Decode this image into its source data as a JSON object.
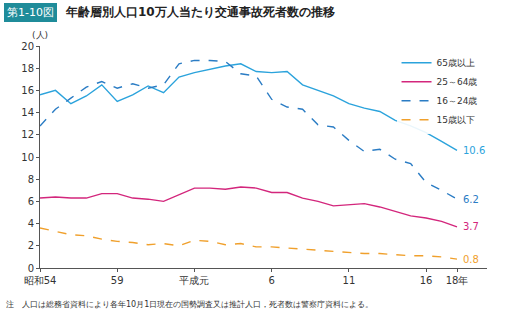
{
  "chart_data": {
    "type": "line",
    "figure_number": "第1-10図",
    "title": "年齢層別人口10万人当たり交通事故死者数の推移",
    "y_label": "(人)",
    "note": "注　人口は総務省資料により各年10月1日現在の国勢調査又は推計人口，死者数は警察庁資料による。",
    "categories": [
      "昭和54",
      null,
      null,
      null,
      null,
      "59",
      null,
      null,
      null,
      null,
      "平成元",
      null,
      null,
      null,
      null,
      "6",
      null,
      null,
      null,
      null,
      "11",
      null,
      null,
      null,
      null,
      "16",
      null,
      "18年"
    ],
    "series": [
      {
        "name": "65歳以上",
        "color": "#2ba3dc",
        "line_style": "solid",
        "values": [
          15.6,
          16.0,
          14.8,
          15.5,
          16.5,
          15.0,
          15.6,
          16.4,
          15.8,
          17.2,
          17.6,
          17.9,
          18.2,
          18.4,
          17.7,
          17.6,
          17.7,
          16.5,
          16.0,
          15.5,
          14.8,
          14.4,
          14.1,
          13.3,
          12.8,
          12.2,
          11.4,
          10.6
        ]
      },
      {
        "name": "25～64歳",
        "color": "#d3267c",
        "line_style": "solid",
        "values": [
          6.3,
          6.4,
          6.3,
          6.3,
          6.7,
          6.7,
          6.3,
          6.2,
          6.0,
          6.6,
          7.2,
          7.2,
          7.1,
          7.3,
          7.2,
          6.8,
          6.8,
          6.3,
          6.0,
          5.6,
          5.7,
          5.8,
          5.5,
          5.1,
          4.7,
          4.5,
          4.2,
          3.7
        ]
      },
      {
        "name": "16～24歳",
        "color": "#2a7cc4",
        "line_style": "dash",
        "values": [
          12.8,
          14.3,
          15.3,
          16.3,
          16.8,
          16.2,
          16.6,
          16.2,
          16.5,
          18.4,
          18.7,
          18.7,
          18.6,
          17.5,
          17.3,
          15.2,
          14.5,
          14.3,
          12.9,
          12.7,
          11.5,
          10.5,
          10.7,
          9.8,
          9.4,
          7.7,
          7.0,
          6.2
        ]
      },
      {
        "name": "15歳以下",
        "color": "#f0a02c",
        "line_style": "dash",
        "values": [
          3.6,
          3.3,
          3.0,
          2.9,
          2.6,
          2.4,
          2.3,
          2.1,
          2.2,
          2.0,
          2.5,
          2.4,
          2.1,
          2.2,
          1.9,
          1.9,
          1.8,
          1.7,
          1.6,
          1.5,
          1.4,
          1.3,
          1.3,
          1.2,
          1.1,
          1.1,
          1.0,
          0.8
        ]
      }
    ],
    "annotations": [
      {
        "series": "65歳以上",
        "text": "10.6"
      },
      {
        "series": "16～24歳",
        "text": "6.2"
      },
      {
        "series": "25～64歳",
        "text": "3.7"
      },
      {
        "series": "15歳以下",
        "text": "0.8"
      }
    ],
    "ylim": [
      0,
      20
    ],
    "yticks": [
      0,
      2,
      4,
      6,
      8,
      10,
      12,
      14,
      16,
      18,
      20
    ],
    "grid": false,
    "legend": "top right"
  }
}
